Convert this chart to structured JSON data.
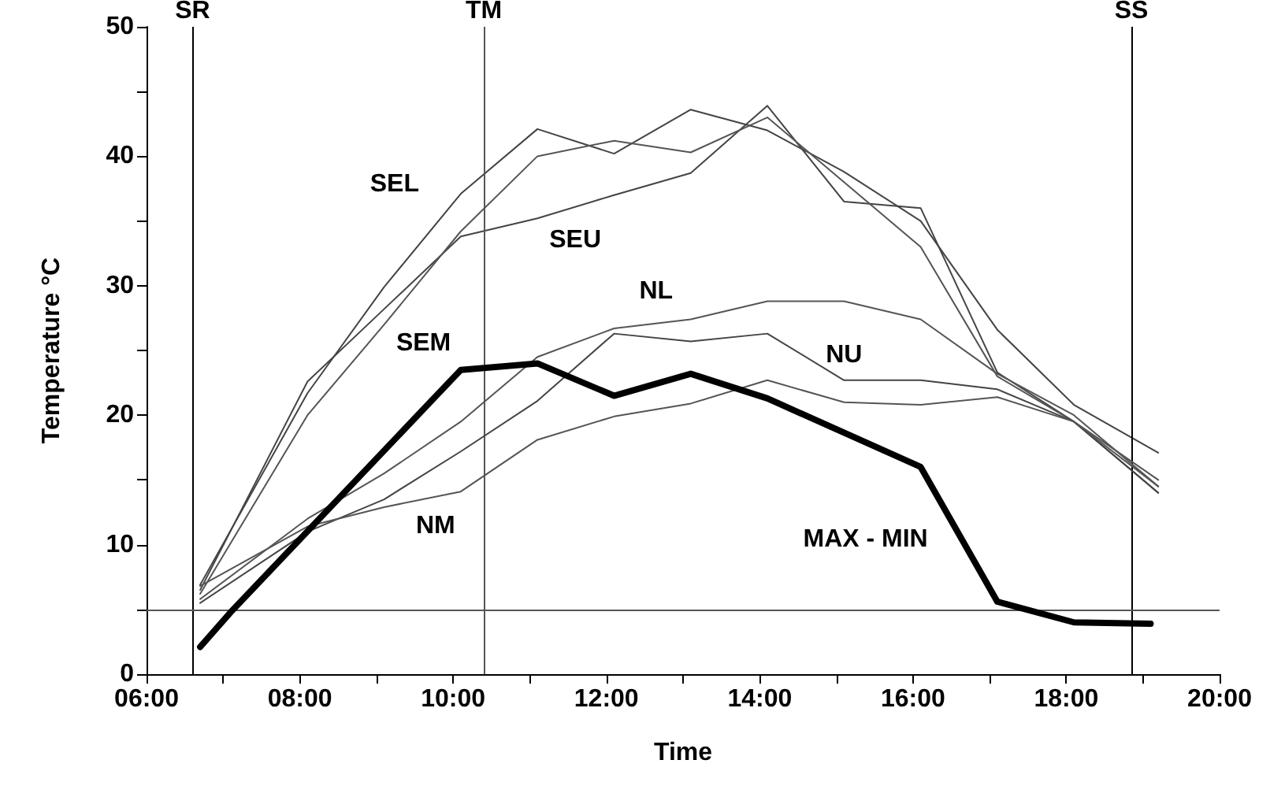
{
  "chart_data": {
    "type": "line",
    "xlabel": "Time",
    "ylabel": "Temperature °C",
    "x": [
      6.7,
      8.1,
      9.1,
      10.1,
      11.1,
      12.1,
      13.1,
      14.1,
      15.1,
      16.1,
      17.1,
      18.1,
      19.2
    ],
    "series": [
      {
        "name": "SEL",
        "color": "#444444",
        "values": [
          6.9,
          21.7,
          29.9,
          37.1,
          42.1,
          40.2,
          43.6,
          42.0,
          38.8,
          35.0,
          26.6,
          20.8,
          17.1
        ]
      },
      {
        "name": "SEU",
        "color": "#444444",
        "values": [
          6.5,
          22.6,
          28.2,
          33.8,
          35.2,
          37.0,
          38.7,
          43.9,
          36.5,
          36.0,
          23.3,
          19.5,
          14.0
        ]
      },
      {
        "name": "SEM",
        "color": "#555555",
        "values": [
          6.2,
          20.0,
          27.0,
          34.2,
          40.0,
          41.2,
          40.3,
          43.0,
          38.0,
          33.0,
          23.0,
          19.5,
          15.0
        ]
      },
      {
        "name": "NL",
        "color": "#555555",
        "values": [
          5.8,
          12.0,
          15.5,
          19.5,
          24.5,
          26.7,
          27.4,
          28.8,
          28.8,
          27.4,
          23.2,
          20.0,
          14.5
        ]
      },
      {
        "name": "NU",
        "color": "#444444",
        "values": [
          5.5,
          11.0,
          13.5,
          17.2,
          21.1,
          26.3,
          25.7,
          26.3,
          22.7,
          22.7,
          22.0,
          19.5,
          14.0
        ]
      },
      {
        "name": "NM",
        "color": "#555555",
        "values": [
          6.8,
          11.4,
          12.9,
          14.1,
          18.1,
          19.9,
          20.9,
          22.7,
          21.0,
          20.8,
          21.4,
          19.5,
          14.5
        ]
      },
      {
        "name": "MAX - MIN",
        "color": "#000000",
        "x": [
          6.7,
          7.1,
          10.1,
          11.1,
          12.1,
          13.1,
          14.1,
          16.1,
          17.1,
          18.1,
          19.1
        ],
        "values": [
          2.1,
          4.8,
          23.5,
          24.0,
          21.5,
          23.2,
          21.3,
          16.0,
          5.6,
          4.0,
          3.9
        ]
      }
    ],
    "xlim": [
      6,
      20
    ],
    "xticks": [
      {
        "value": 6,
        "label": "06:00"
      },
      {
        "value": 7,
        "label": null
      },
      {
        "value": 8,
        "label": "08:00"
      },
      {
        "value": 9,
        "label": null
      },
      {
        "value": 10,
        "label": "10:00"
      },
      {
        "value": 11,
        "label": null
      },
      {
        "value": 12,
        "label": "12:00"
      },
      {
        "value": 13,
        "label": null
      },
      {
        "value": 14,
        "label": "14:00"
      },
      {
        "value": 15,
        "label": null
      },
      {
        "value": 16,
        "label": "16:00"
      },
      {
        "value": 17,
        "label": null
      },
      {
        "value": 18,
        "label": "18:00"
      },
      {
        "value": 19,
        "label": null
      },
      {
        "value": 20,
        "label": "20:00"
      }
    ],
    "ylim": [
      0,
      50
    ],
    "yticks": [
      0,
      {
        "value": 5,
        "label": null
      },
      10,
      {
        "value": 15,
        "label": null
      },
      20,
      {
        "value": 25,
        "label": null
      },
      30,
      {
        "value": 35,
        "label": null
      },
      40,
      {
        "value": 45,
        "label": null
      },
      50
    ],
    "ref_lines": [
      {
        "axis": "x",
        "value": 6.6,
        "label": "SR",
        "color": "#000000"
      },
      {
        "axis": "x",
        "value": 10.4,
        "label": "TM",
        "color": "#555555"
      },
      {
        "axis": "x",
        "value": 18.85,
        "label": "SS",
        "color": "#000000"
      },
      {
        "axis": "y",
        "value": 5,
        "label": null,
        "color": "#555555"
      }
    ],
    "grid": false,
    "legend": false
  }
}
